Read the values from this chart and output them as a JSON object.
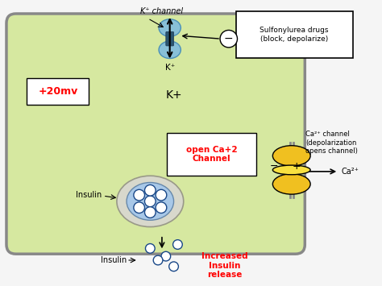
{
  "bg_color": "#f5f5f5",
  "cell_color": "#d6e8a0",
  "cell_border_color": "#888888",
  "k_channel_label": "K⁺ channel",
  "k_plus_inside": "K⁺",
  "k_plus_label": "K+",
  "sulfonylurea_box_text": "Sulfonylurea drugs\n(block, depolarize)",
  "voltage_label": "+20mv",
  "k_inside_label": "K+",
  "open_ca_text": "open Ca+2\nChannel",
  "ca_channel_label": "Ca²⁺ channel\n(depolarization\nopens channel)",
  "ca2_label": "Ca²⁺",
  "insulin_vesicle_label": "Insulin",
  "insulin_released_label": "Insulin",
  "increased_text": "Increased\nInsulin\nrelease",
  "k_channel_blue": "#88c0d8",
  "ca_channel_yellow": "#f0c020",
  "vesicle_outer": "#d8d8cc",
  "vesicle_inner": "#a8c8e8",
  "dot_blue": "#2860a8",
  "dot_outline": "#1a4888"
}
